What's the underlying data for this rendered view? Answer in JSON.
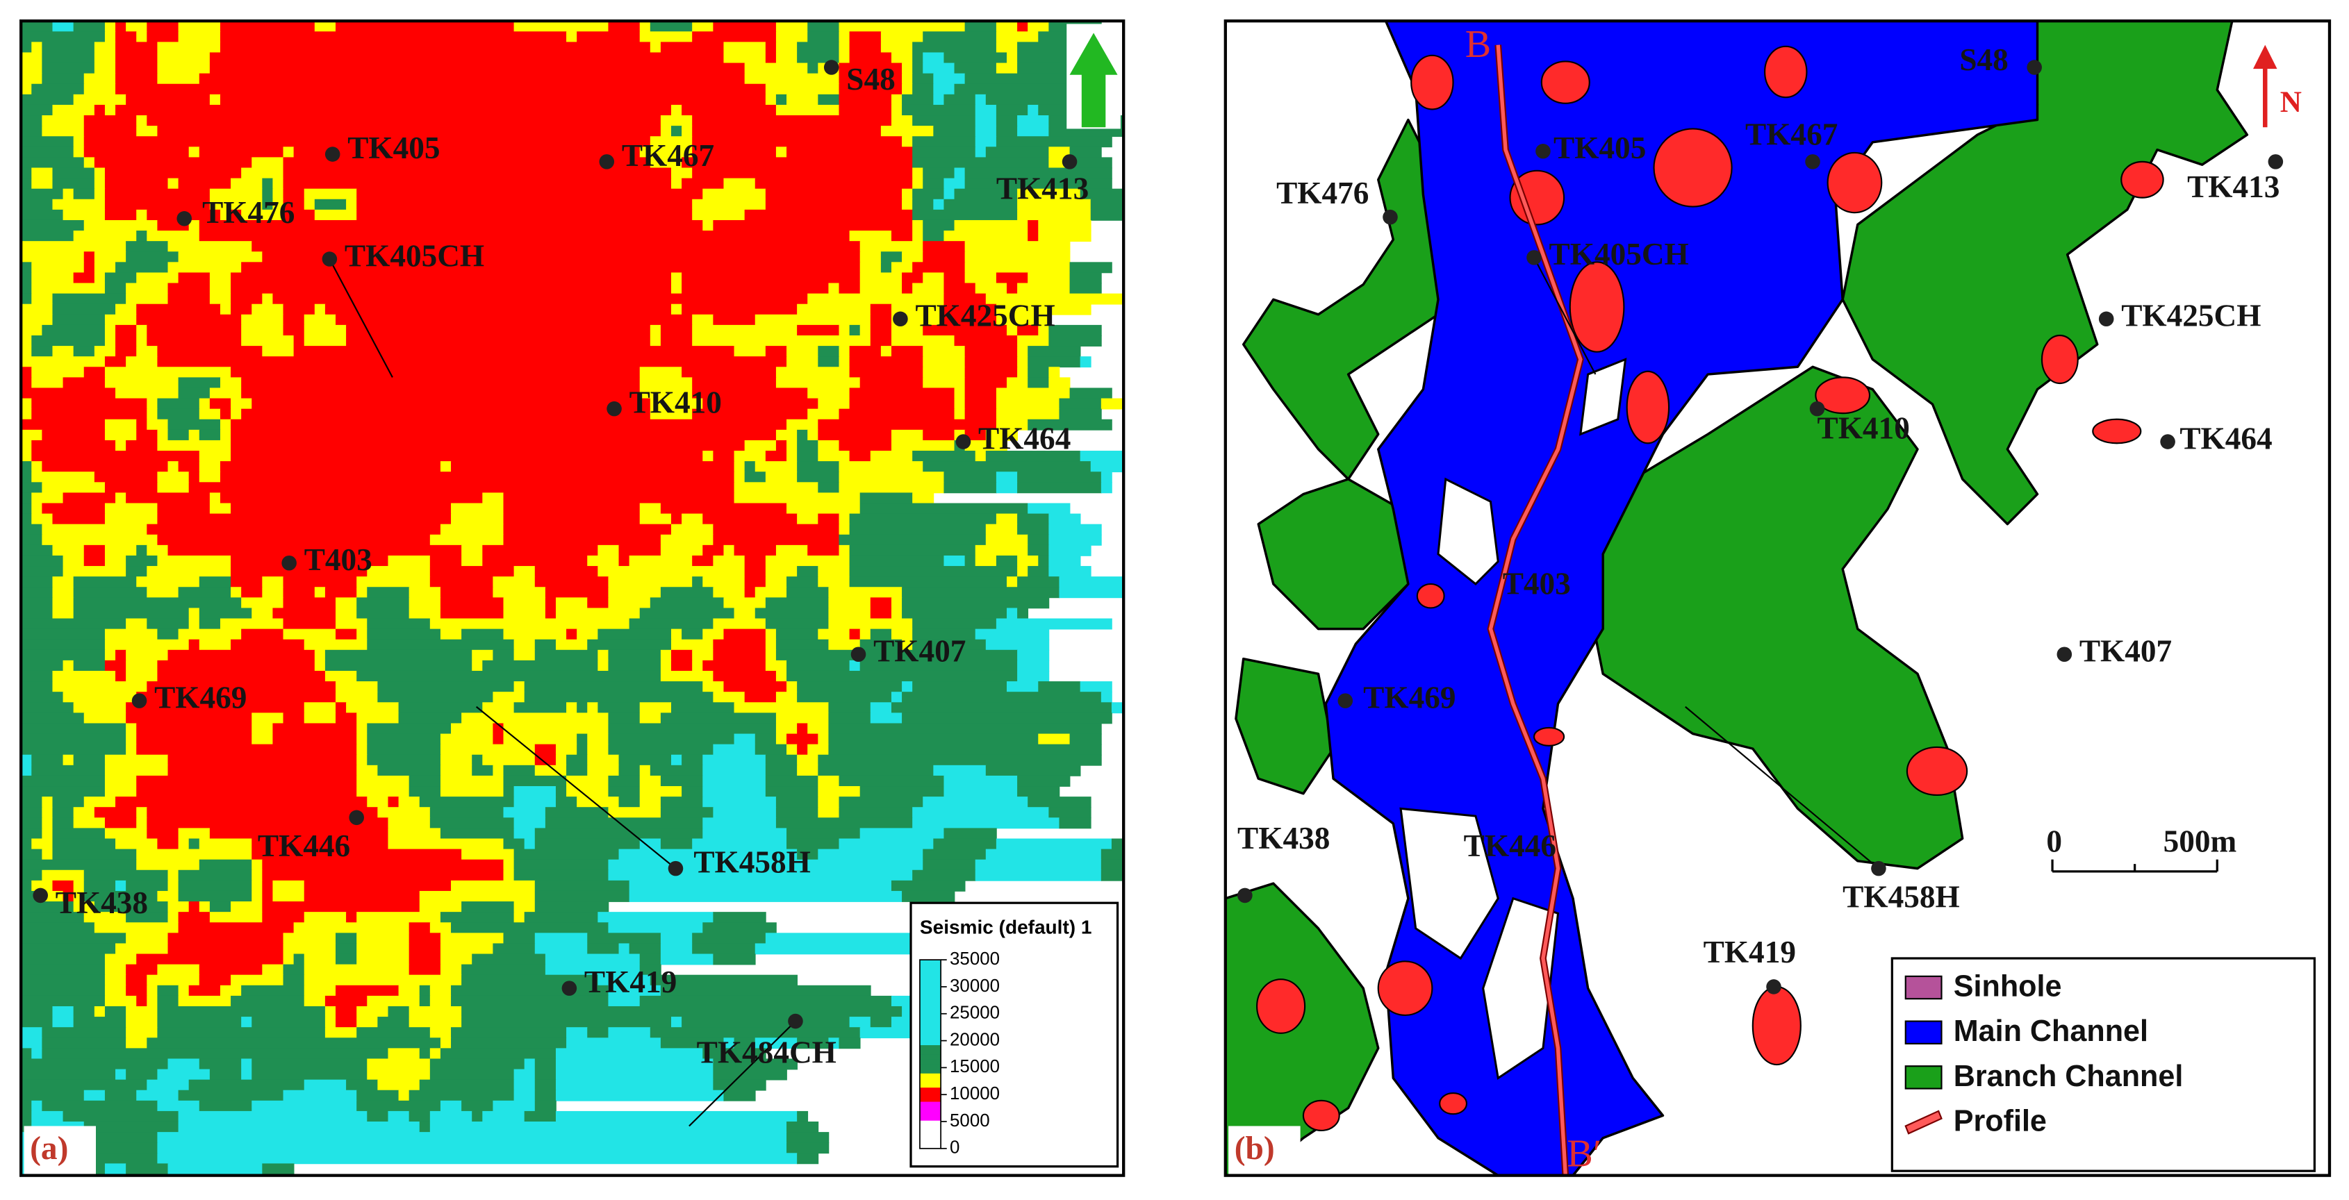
{
  "panel_a": {
    "label": "(a)",
    "wells": [
      "S48",
      "TK405",
      "TK467",
      "TK413",
      "TK476",
      "TK405CH",
      "TK425CH",
      "TK410",
      "TK464",
      "T403",
      "TK407",
      "TK469",
      "TK446",
      "TK458H",
      "TK438",
      "TK419",
      "TK484CH"
    ],
    "colorbar": {
      "title": "Seismic (default) 1",
      "ticks": [
        35000,
        30000,
        25000,
        20000,
        15000,
        10000,
        5000,
        0
      ]
    }
  },
  "panel_b": {
    "label": "(b)",
    "wells": [
      "S48",
      "TK405",
      "TK467",
      "TK413",
      "TK476",
      "TK405CH",
      "TK425CH",
      "TK410",
      "TK464",
      "T403",
      "TK407",
      "TK469",
      "TK446",
      "TK458H",
      "TK438",
      "TK419"
    ],
    "north": "N",
    "profile_start": "B",
    "profile_end": "B′",
    "scale_bar": {
      "start": "0",
      "end": "500m"
    },
    "legend": [
      "Sinhole",
      "Main Channel",
      "Branch Channel",
      "Profile"
    ]
  }
}
